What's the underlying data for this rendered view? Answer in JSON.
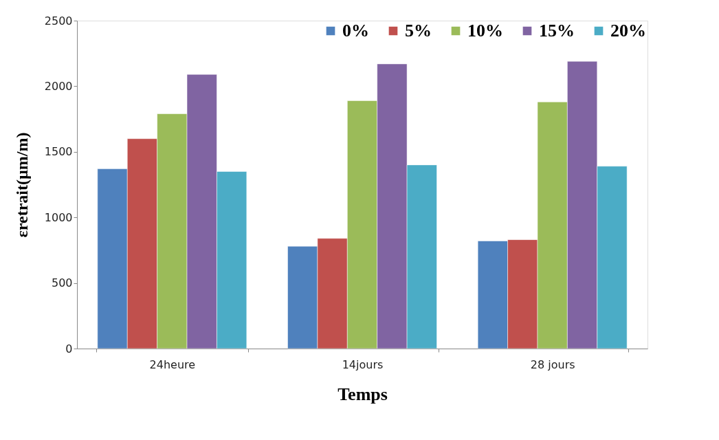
{
  "chart_data": {
    "type": "bar",
    "xlabel": "Temps",
    "ylabel": "εretrait(µm/m)",
    "categories": [
      "24heure",
      "14jours",
      "28 jours"
    ],
    "series": [
      {
        "name": "0%",
        "color": "#4f81bd",
        "values": [
          1370,
          780,
          820
        ]
      },
      {
        "name": "5%",
        "color": "#c0504d",
        "values": [
          1600,
          840,
          830
        ]
      },
      {
        "name": "10%",
        "color": "#9bbb59",
        "values": [
          1790,
          1890,
          1880
        ]
      },
      {
        "name": "15%",
        "color": "#8064a2",
        "values": [
          2090,
          2170,
          2190
        ]
      },
      {
        "name": "20%",
        "color": "#4bacc6",
        "values": [
          1350,
          1400,
          1390
        ]
      }
    ],
    "ylim": [
      0,
      2500
    ],
    "yticks": [
      0,
      500,
      1000,
      1500,
      2000,
      2500
    ],
    "grid": false,
    "legend": "top right"
  }
}
